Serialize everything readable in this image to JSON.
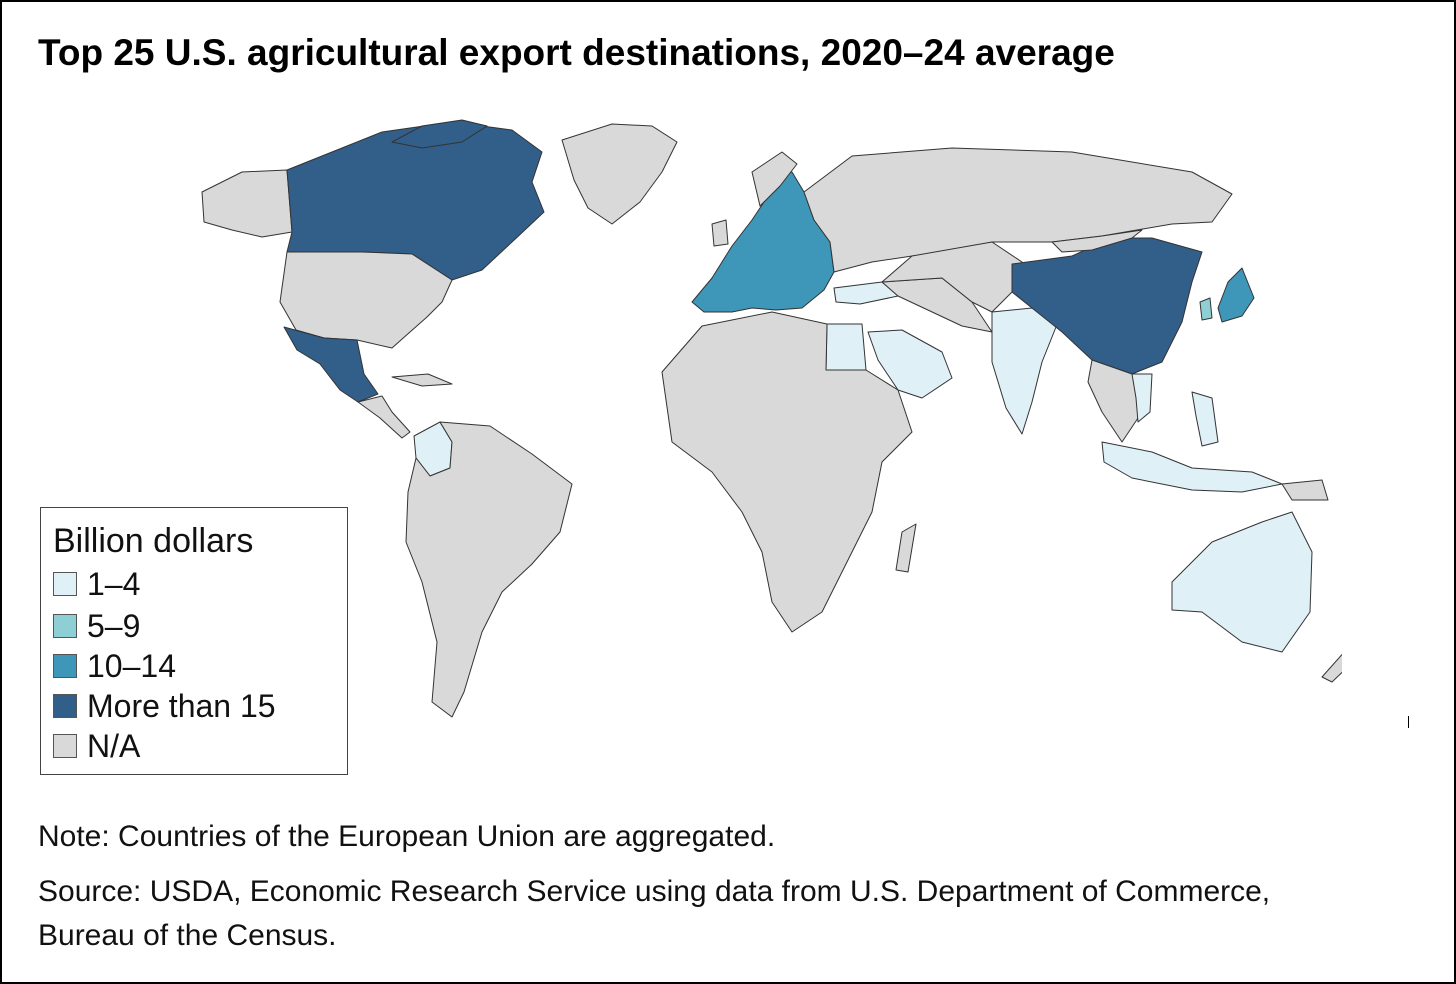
{
  "title": "Top 25 U.S. agricultural export destinations, 2020–24 average",
  "legend": {
    "title": "Billion dollars",
    "items": [
      {
        "label": "1–4",
        "color": "#dff0f6"
      },
      {
        "label": "5–9",
        "color": "#8ecfd6"
      },
      {
        "label": "10–14",
        "color": "#3e97b8"
      },
      {
        "label": "More than 15",
        "color": "#325e8a"
      },
      {
        "label": "N/A",
        "color": "#d9d9d9"
      }
    ]
  },
  "categories": {
    "more_than_15": [
      "Canada",
      "Mexico",
      "China"
    ],
    "10_14": [
      "European Union",
      "Japan"
    ],
    "5_9": [
      "South Korea"
    ],
    "1_4": [
      "Colombia",
      "Egypt",
      "Saudi Arabia",
      "Turkey",
      "India",
      "Vietnam",
      "Philippines",
      "Indonesia",
      "Australia"
    ]
  },
  "note": "Note: Countries of the European Union are aggregated.",
  "source": "Source: USDA, Economic Research Service using data from U.S. Department of Commerce, Bureau of the Census."
}
